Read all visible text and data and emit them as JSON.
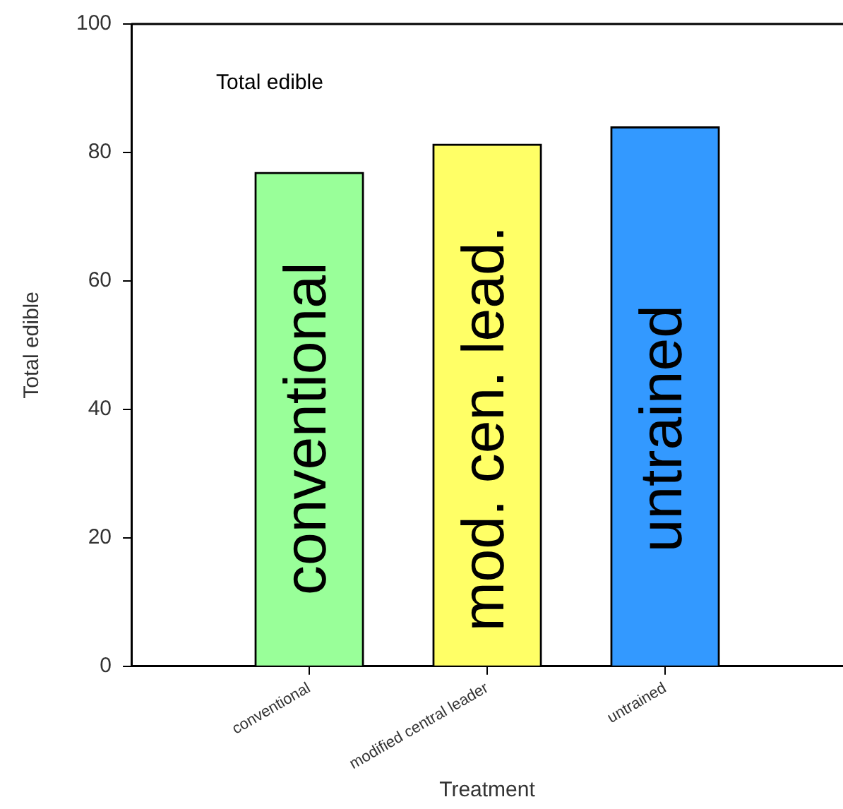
{
  "chart_data": {
    "type": "bar",
    "xlabel": "Treatment",
    "ylabel": "Total edible",
    "categories": [
      "conventional",
      "modified central leader",
      "untrained"
    ],
    "values": [
      76.9,
      81.3,
      84.0
    ],
    "colors": [
      "#99ff99",
      "#ffff66",
      "#3399ff"
    ],
    "ylim": [
      0,
      100
    ],
    "yticks": [
      0,
      20,
      40,
      60,
      80,
      100
    ],
    "grid": false,
    "legend": false,
    "annotations": [
      "Total edible",
      "conventional",
      "mod. cen. lead.",
      "untrained"
    ]
  }
}
